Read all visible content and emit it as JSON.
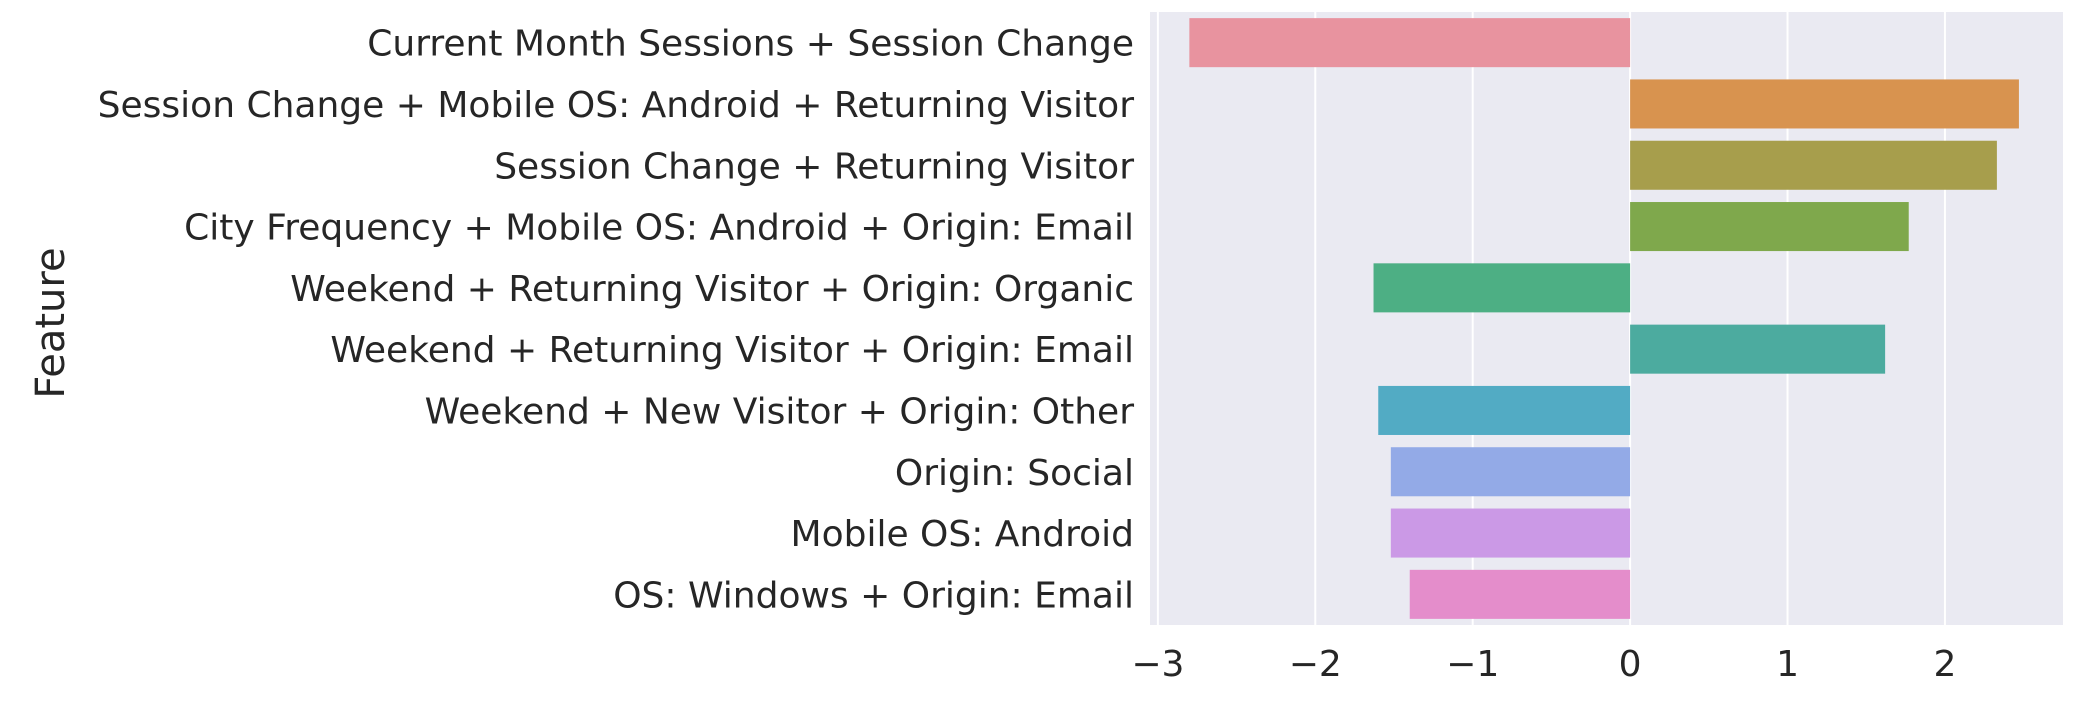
{
  "chart_data": {
    "type": "bar",
    "orientation": "horizontal",
    "title": "",
    "xlabel": "",
    "ylabel": "Feature",
    "xlim": [
      -3.05,
      2.75
    ],
    "xticks": [
      -3,
      -2,
      -1,
      0,
      1,
      2
    ],
    "xtick_labels": [
      "−3",
      "−2",
      "−1",
      "0",
      "1",
      "2"
    ],
    "grid": true,
    "legend": "none",
    "background": "#eaeaf2",
    "categories": [
      "Current Month Sessions + Session Change",
      "Session Change + Mobile OS: Android + Returning Visitor",
      "Session Change + Returning Visitor",
      "City Frequency + Mobile OS: Android + Origin: Email",
      "Weekend + Returning Visitor + Origin: Organic ",
      "Weekend + Returning Visitor + Origin: Email",
      "Weekend + New Visitor + Origin: Other",
      "Origin: Social",
      "Mobile OS: Android",
      "OS: Windows + Origin: Email"
    ],
    "values": [
      -2.8,
      2.47,
      2.33,
      1.77,
      -1.63,
      1.62,
      -1.6,
      -1.52,
      -1.52,
      -1.4
    ],
    "colors": [
      "#e8939f",
      "#d8934f",
      "#a79e4c",
      "#7fa84c",
      "#4daf84",
      "#4cab9f",
      "#52abc4",
      "#93aae7",
      "#cb99e6",
      "#e48dcb"
    ]
  }
}
